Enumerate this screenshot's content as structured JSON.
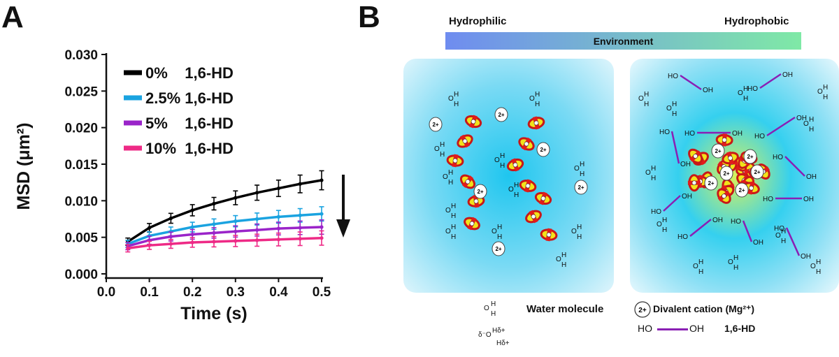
{
  "panels": {
    "a_label": "A",
    "b_label": "B"
  },
  "chart_data": {
    "type": "line",
    "title": "",
    "xlabel": "Time (s)",
    "ylabel": "MSD (μm²)",
    "xlim": [
      0.0,
      0.5
    ],
    "ylim": [
      0.0,
      0.03
    ],
    "x_ticks": [
      "0.0",
      "0.1",
      "0.2",
      "0.3",
      "0.4",
      "0.5"
    ],
    "y_ticks": [
      "0.000",
      "0.005",
      "0.010",
      "0.015",
      "0.020",
      "0.025",
      "0.030"
    ],
    "x": [
      0.05,
      0.1,
      0.15,
      0.2,
      0.25,
      0.3,
      0.35,
      0.4,
      0.45,
      0.5
    ],
    "series": [
      {
        "name": "0%    1,6-HD",
        "color": "#000000",
        "values": [
          0.0044,
          0.0063,
          0.0076,
          0.0087,
          0.0096,
          0.0104,
          0.0111,
          0.0117,
          0.0123,
          0.0128
        ]
      },
      {
        "name": "2.5% 1,6-HD",
        "color": "#1aa3e0",
        "values": [
          0.0041,
          0.0052,
          0.0058,
          0.0064,
          0.0068,
          0.0072,
          0.0075,
          0.0078,
          0.008,
          0.0082
        ]
      },
      {
        "name": "5%    1,6-HD",
        "color": "#9a24c9",
        "values": [
          0.0038,
          0.0046,
          0.0051,
          0.0054,
          0.0056,
          0.0058,
          0.006,
          0.0062,
          0.0063,
          0.0064
        ]
      },
      {
        "name": "10%  1,6-HD",
        "color": "#ee2a86",
        "values": [
          0.0035,
          0.0039,
          0.0041,
          0.0043,
          0.0044,
          0.0045,
          0.0046,
          0.0047,
          0.0048,
          0.0049
        ]
      }
    ],
    "grid": false,
    "legend_position": "top-left",
    "annotation": "downward arrow"
  },
  "schematic": {
    "left_label": "Hydrophilic",
    "right_label": "Hydrophobic",
    "bar_label": "Environment",
    "gradient": [
      "#6f8cf0",
      "#7fe9a6"
    ],
    "legend": {
      "water_label": "Water molecule",
      "cation_label": "Divalent cation (Mg²⁺)",
      "hd_label": "1,6-HD",
      "cation_symbol": "2+",
      "ho_text": "HO",
      "oh_text": "OH"
    }
  }
}
